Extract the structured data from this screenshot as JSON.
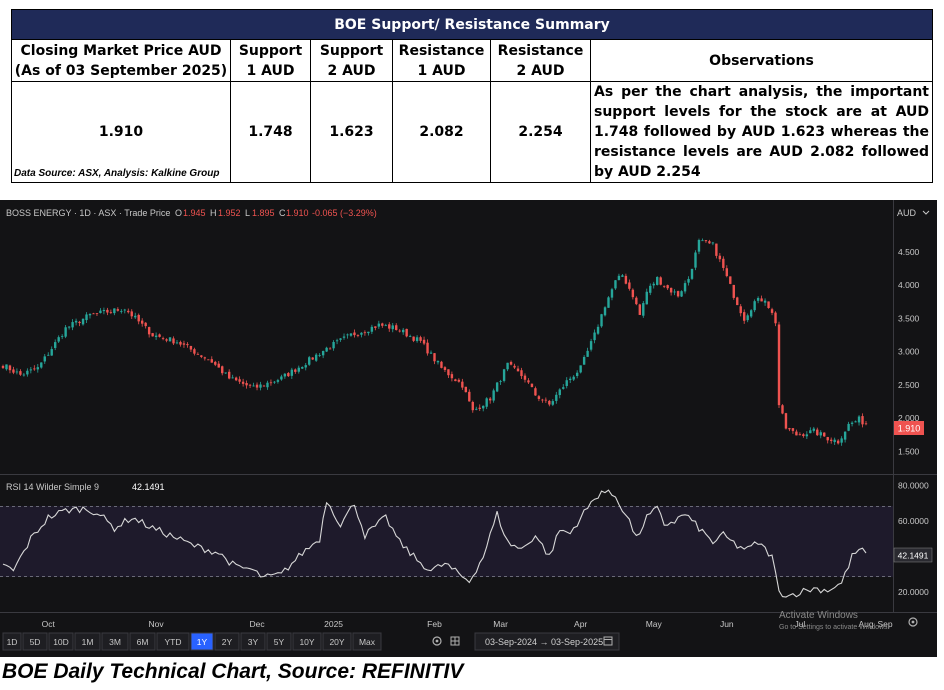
{
  "summary": {
    "title": "BOE Support/  Resistance Summary",
    "headers": [
      "Closing Market Price AUD (As of 03 September 2025)",
      "Support 1 AUD",
      "Support 2 AUD",
      "Resistance 1 AUD",
      "Resistance 2 AUD",
      "Observations"
    ],
    "values": [
      "1.910",
      "1.748",
      "1.623",
      "2.082",
      "2.254"
    ],
    "observation": "As per the chart analysis, the important support levels for the stock are at AUD 1.748 followed by AUD 1.623 whereas the resistance levels are AUD 2.082 followed by AUD 2.254"
  },
  "data_source": "Data Source: ASX, Analysis: Kalkine Group",
  "caption": "BOE Daily Technical Chart, Source: REFINITIV",
  "chart_header": {
    "symbol_line": "BOSS ENERGY · 1D · ASX · Trade Price",
    "o_label": "O",
    "o_value": "1.945",
    "h_label": "H",
    "h_value": "1.952",
    "l_label": "L",
    "l_value": "1.895",
    "c_label": "C",
    "c_value": "1.910",
    "change": "-0.065 (−3.29%)",
    "currency": "AUD"
  },
  "rsi_header": {
    "label": "RSI 14 Wilder Simple 9",
    "value": "42.1491"
  },
  "price_badge": "1.910",
  "rsi_badge": "42.1491",
  "watermark": {
    "line1": "Activate Windows",
    "line2": "Go to Settings to activate Windows."
  },
  "timeframes": [
    "1D",
    "5D",
    "10D",
    "1M",
    "3M",
    "6M",
    "YTD",
    "1Y",
    "2Y",
    "3Y",
    "5Y",
    "10Y",
    "20Y",
    "Max"
  ],
  "selected_timeframe": "1Y",
  "date_range": "03-Sep-2024 → 03-Sep-2025",
  "colors": {
    "up": "#26a69a",
    "down": "#ef5350",
    "background": "#131315",
    "rsi_line": "#d7d7d7",
    "title_bg": "#1f2a58",
    "selected_tf": "#2962ff"
  },
  "chart_data": {
    "type": "candlestick",
    "title": "BOSS ENERGY · 1D · ASX · Trade Price",
    "x_tick_labels": [
      "Oct",
      "Nov",
      "Dec",
      "2025",
      "Feb",
      "Mar",
      "Apr",
      "May",
      "Jun",
      "Jul",
      "Aug",
      "Sep"
    ],
    "price_axis": {
      "ticks": [
        1.5,
        2.0,
        2.5,
        3.0,
        3.5,
        4.0,
        4.5
      ],
      "tick_labels": [
        "1.500",
        "2.000",
        "2.500",
        "3.000",
        "3.500",
        "4.000",
        "4.500"
      ],
      "range": [
        1.25,
        4.95
      ]
    },
    "rsi_axis": {
      "ticks": [
        20,
        40,
        60,
        80
      ],
      "tick_labels": [
        "20.0000",
        "40.0000",
        "60.0000",
        "80.0000"
      ],
      "range": [
        11,
        82
      ],
      "overbought": 70,
      "oversold": 30
    },
    "series": [
      {
        "name": "Price",
        "close_keyframes": [
          [
            0,
            2.8
          ],
          [
            5,
            2.65
          ],
          [
            10,
            2.75
          ],
          [
            18,
            3.35
          ],
          [
            25,
            3.55
          ],
          [
            35,
            3.65
          ],
          [
            43,
            3.25
          ],
          [
            50,
            3.15
          ],
          [
            55,
            3.0
          ],
          [
            60,
            2.85
          ],
          [
            65,
            2.6
          ],
          [
            72,
            2.45
          ],
          [
            80,
            2.6
          ],
          [
            86,
            2.8
          ],
          [
            93,
            3.05
          ],
          [
            100,
            3.25
          ],
          [
            108,
            3.4
          ],
          [
            113,
            3.35
          ],
          [
            120,
            3.15
          ],
          [
            126,
            2.75
          ],
          [
            132,
            2.5
          ],
          [
            135,
            2.1
          ],
          [
            140,
            2.3
          ],
          [
            145,
            2.8
          ],
          [
            150,
            2.6
          ],
          [
            153,
            2.35
          ],
          [
            157,
            2.2
          ],
          [
            162,
            2.55
          ],
          [
            166,
            2.75
          ],
          [
            170,
            3.25
          ],
          [
            173,
            3.7
          ],
          [
            176,
            4.05
          ],
          [
            178,
            4.15
          ],
          [
            181,
            3.85
          ],
          [
            183,
            3.55
          ],
          [
            185,
            3.9
          ],
          [
            188,
            4.1
          ],
          [
            191,
            3.95
          ],
          [
            194,
            3.85
          ],
          [
            197,
            4.1
          ],
          [
            200,
            4.65
          ],
          [
            204,
            4.6
          ],
          [
            207,
            4.25
          ],
          [
            210,
            3.85
          ],
          [
            213,
            3.5
          ],
          [
            216,
            3.75
          ],
          [
            219,
            3.8
          ],
          [
            222,
            3.45
          ],
          [
            223,
            2.2
          ],
          [
            225,
            1.85
          ],
          [
            228,
            1.75
          ],
          [
            233,
            1.8
          ],
          [
            237,
            1.7
          ],
          [
            240,
            1.65
          ],
          [
            243,
            1.9
          ],
          [
            246,
            1.98
          ],
          [
            248,
            1.91
          ]
        ]
      },
      {
        "name": "RSI",
        "keyframes": [
          [
            0,
            35
          ],
          [
            3,
            32
          ],
          [
            8,
            50
          ],
          [
            13,
            62
          ],
          [
            18,
            66
          ],
          [
            23,
            67
          ],
          [
            27,
            65
          ],
          [
            32,
            56
          ],
          [
            37,
            62
          ],
          [
            43,
            56
          ],
          [
            48,
            52
          ],
          [
            55,
            46
          ],
          [
            62,
            42
          ],
          [
            67,
            34
          ],
          [
            71,
            33
          ],
          [
            75,
            28
          ],
          [
            80,
            30
          ],
          [
            86,
            42
          ],
          [
            91,
            50
          ],
          [
            93,
            72
          ],
          [
            97,
            58
          ],
          [
            101,
            70
          ],
          [
            104,
            52
          ],
          [
            110,
            62
          ],
          [
            114,
            48
          ],
          [
            119,
            38
          ],
          [
            123,
            32
          ],
          [
            127,
            36
          ],
          [
            131,
            30
          ],
          [
            134,
            26
          ],
          [
            138,
            40
          ],
          [
            142,
            64
          ],
          [
            145,
            48
          ],
          [
            149,
            44
          ],
          [
            153,
            52
          ],
          [
            157,
            40
          ],
          [
            160,
            55
          ],
          [
            163,
            53
          ],
          [
            166,
            62
          ],
          [
            169,
            70
          ],
          [
            172,
            77
          ],
          [
            176,
            74
          ],
          [
            180,
            60
          ],
          [
            182,
            50
          ],
          [
            185,
            62
          ],
          [
            188,
            67
          ],
          [
            190,
            58
          ],
          [
            193,
            60
          ],
          [
            196,
            64
          ],
          [
            200,
            56
          ],
          [
            204,
            48
          ],
          [
            207,
            52
          ],
          [
            211,
            46
          ],
          [
            214,
            44
          ],
          [
            217,
            48
          ],
          [
            221,
            40
          ],
          [
            223,
            20
          ],
          [
            226,
            18
          ],
          [
            229,
            20
          ],
          [
            233,
            22
          ],
          [
            237,
            21
          ],
          [
            241,
            25
          ],
          [
            244,
            40
          ],
          [
            246,
            44
          ],
          [
            248,
            42
          ]
        ]
      }
    ]
  }
}
